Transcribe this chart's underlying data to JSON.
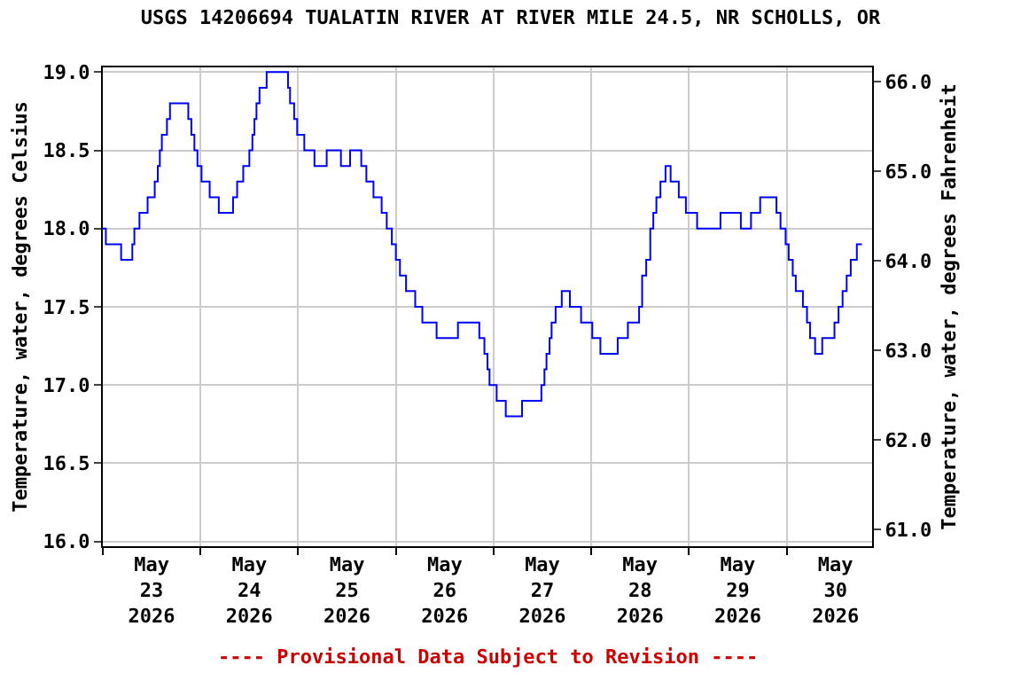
{
  "chart_data": {
    "type": "step",
    "title": "USGS 14206694 TUALATIN RIVER AT RIVER MILE 24.5, NR SCHOLLS, OR",
    "ylabel": "Temperature, water, degrees Celsius",
    "y2label": "Temperature, water, degrees Fahrenheit",
    "annotations": [
      "---- Provisional Data Subject to Revision ----"
    ],
    "x": [
      "2026-05-23T00:00",
      "2026-05-23T00:45",
      "2026-05-23T04:30",
      "2026-05-23T07:15",
      "2026-05-23T07:45",
      "2026-05-23T09:00",
      "2026-05-23T11:00",
      "2026-05-23T12:45",
      "2026-05-23T13:30",
      "2026-05-23T14:00",
      "2026-05-23T14:30",
      "2026-05-23T15:45",
      "2026-05-23T16:30",
      "2026-05-23T21:00",
      "2026-05-23T21:45",
      "2026-05-23T22:30",
      "2026-05-23T23:15",
      "2026-05-24T00:15",
      "2026-05-24T02:15",
      "2026-05-24T04:30",
      "2026-05-24T08:00",
      "2026-05-24T09:00",
      "2026-05-24T10:30",
      "2026-05-24T12:00",
      "2026-05-24T12:45",
      "2026-05-24T13:15",
      "2026-05-24T13:45",
      "2026-05-24T14:30",
      "2026-05-24T16:15",
      "2026-05-24T21:30",
      "2026-05-24T22:00",
      "2026-05-24T23:00",
      "2026-05-24T23:45",
      "2026-05-25T01:30",
      "2026-05-25T04:00",
      "2026-05-25T07:00",
      "2026-05-25T10:30",
      "2026-05-25T12:45",
      "2026-05-25T15:30",
      "2026-05-25T16:45",
      "2026-05-25T18:30",
      "2026-05-25T20:30",
      "2026-05-25T21:45",
      "2026-05-25T23:00",
      "2026-05-26T00:00",
      "2026-05-26T01:00",
      "2026-05-26T02:30",
      "2026-05-26T04:45",
      "2026-05-26T06:30",
      "2026-05-26T10:00",
      "2026-05-26T15:15",
      "2026-05-26T20:30",
      "2026-05-26T21:45",
      "2026-05-26T22:30",
      "2026-05-26T23:00",
      "2026-05-27T00:45",
      "2026-05-27T03:00",
      "2026-05-27T07:00",
      "2026-05-27T11:45",
      "2026-05-27T12:30",
      "2026-05-27T13:00",
      "2026-05-27T13:45",
      "2026-05-27T14:15",
      "2026-05-27T15:15",
      "2026-05-27T16:45",
      "2026-05-27T18:45",
      "2026-05-27T21:30",
      "2026-05-28T00:15",
      "2026-05-28T02:15",
      "2026-05-28T06:30",
      "2026-05-28T09:00",
      "2026-05-28T11:45",
      "2026-05-28T12:30",
      "2026-05-28T13:30",
      "2026-05-28T14:30",
      "2026-05-28T15:15",
      "2026-05-28T16:00",
      "2026-05-28T17:00",
      "2026-05-28T18:15",
      "2026-05-28T19:30",
      "2026-05-28T21:30",
      "2026-05-28T23:15",
      "2026-05-29T02:00",
      "2026-05-29T07:45",
      "2026-05-29T12:45",
      "2026-05-29T15:15",
      "2026-05-29T17:30",
      "2026-05-29T21:30",
      "2026-05-29T22:30",
      "2026-05-29T23:45",
      "2026-05-30T00:30",
      "2026-05-30T01:30",
      "2026-05-30T02:15",
      "2026-05-30T04:00",
      "2026-05-30T05:00",
      "2026-05-30T05:45",
      "2026-05-30T07:00",
      "2026-05-30T08:45",
      "2026-05-30T11:45",
      "2026-05-30T12:45",
      "2026-05-30T13:45",
      "2026-05-30T14:45",
      "2026-05-30T15:45",
      "2026-05-30T17:15",
      "2026-05-30T18:30"
    ],
    "series": [
      {
        "color": "#0000ff",
        "values": [
          18.0,
          17.9,
          17.8,
          17.9,
          18.0,
          18.1,
          18.2,
          18.3,
          18.4,
          18.5,
          18.6,
          18.7,
          18.8,
          18.7,
          18.6,
          18.5,
          18.4,
          18.3,
          18.2,
          18.1,
          18.2,
          18.3,
          18.4,
          18.5,
          18.6,
          18.7,
          18.8,
          18.9,
          19.0,
          18.9,
          18.8,
          18.7,
          18.6,
          18.5,
          18.4,
          18.5,
          18.4,
          18.5,
          18.4,
          18.3,
          18.2,
          18.1,
          18.0,
          17.9,
          17.8,
          17.7,
          17.6,
          17.5,
          17.4,
          17.3,
          17.4,
          17.3,
          17.2,
          17.1,
          17.0,
          16.9,
          16.8,
          16.9,
          17.0,
          17.1,
          17.2,
          17.3,
          17.4,
          17.5,
          17.6,
          17.5,
          17.4,
          17.3,
          17.2,
          17.3,
          17.4,
          17.5,
          17.7,
          17.8,
          18.0,
          18.1,
          18.2,
          18.3,
          18.4,
          18.3,
          18.2,
          18.1,
          18.0,
          18.1,
          18.0,
          18.1,
          18.2,
          18.1,
          18.0,
          17.9,
          17.8,
          17.7,
          17.6,
          17.5,
          17.4,
          17.3,
          17.2,
          17.3,
          17.4,
          17.5,
          17.6,
          17.7,
          17.8,
          17.9,
          17.9
        ]
      }
    ],
    "xlim": [
      "2026-05-23T00:00",
      "2026-05-30T21:00"
    ],
    "xticks": [
      {
        "value": "2026-05-23T00:00",
        "label": null
      },
      {
        "value": "2026-05-23T12:00",
        "label": "May\n23\n2026"
      },
      {
        "value": "2026-05-24T00:00",
        "label": null
      },
      {
        "value": "2026-05-24T12:00",
        "label": "May\n24\n2026"
      },
      {
        "value": "2026-05-25T00:00",
        "label": null
      },
      {
        "value": "2026-05-25T12:00",
        "label": "May\n25\n2026"
      },
      {
        "value": "2026-05-26T00:00",
        "label": null
      },
      {
        "value": "2026-05-26T12:00",
        "label": "May\n26\n2026"
      },
      {
        "value": "2026-05-27T00:00",
        "label": null
      },
      {
        "value": "2026-05-27T12:00",
        "label": "May\n27\n2026"
      },
      {
        "value": "2026-05-28T00:00",
        "label": null
      },
      {
        "value": "2026-05-28T12:00",
        "label": "May\n28\n2026"
      },
      {
        "value": "2026-05-29T00:00",
        "label": null
      },
      {
        "value": "2026-05-29T12:00",
        "label": "May\n29\n2026"
      },
      {
        "value": "2026-05-30T00:00",
        "label": null
      },
      {
        "value": "2026-05-30T12:00",
        "label": "May\n30\n2026"
      }
    ],
    "ylim": [
      15.97,
      19.03
    ],
    "yticks": [
      {
        "value": 16,
        "label": "16.0"
      },
      {
        "value": 16.5,
        "label": "16.5"
      },
      {
        "value": 17,
        "label": "17.0"
      },
      {
        "value": 17.5,
        "label": "17.5"
      },
      {
        "value": 18,
        "label": "18.0"
      },
      {
        "value": 18.5,
        "label": "18.5"
      },
      {
        "value": 19,
        "label": "19.0"
      }
    ],
    "y2lim": [
      60.81,
      66.16
    ],
    "y2ticks": [
      {
        "value": 61,
        "label": "61.0"
      },
      {
        "value": 62,
        "label": "62.0"
      },
      {
        "value": 63,
        "label": "63.0"
      },
      {
        "value": 64,
        "label": "64.0"
      },
      {
        "value": 65,
        "label": "65.0"
      },
      {
        "value": 66,
        "label": "66.0"
      }
    ],
    "grid": true,
    "line_style": "solid",
    "marker": "none"
  }
}
